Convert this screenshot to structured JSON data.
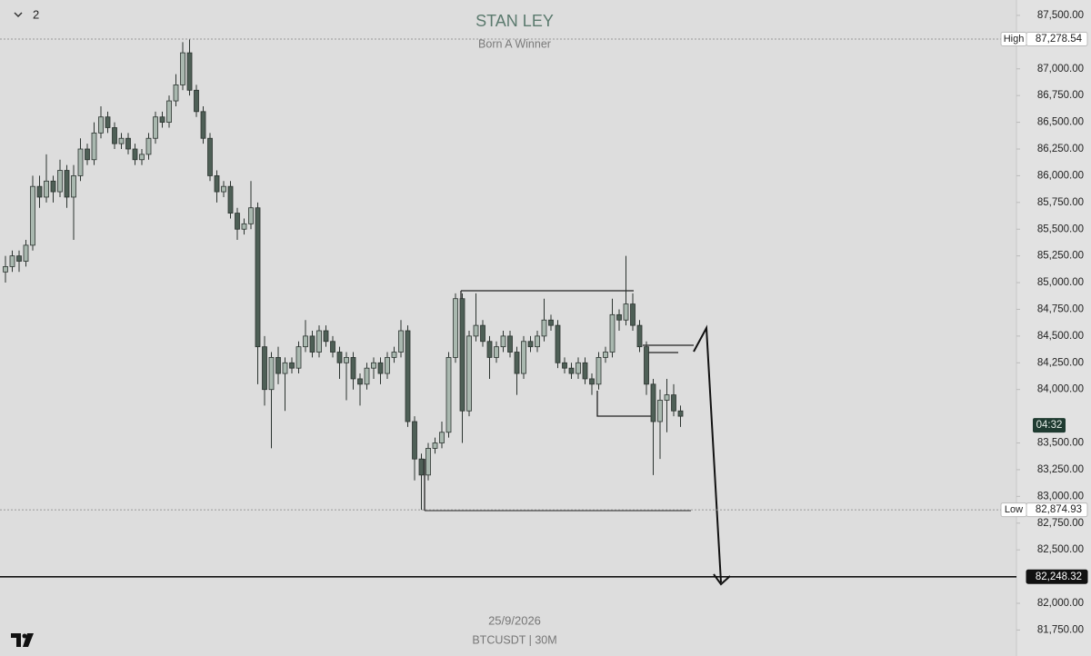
{
  "chart_data": {
    "type": "candlestick",
    "title": "STAN LEY",
    "subtitle": "Born A Winner",
    "pane_label": "2",
    "date": "25/9/2026",
    "symbol": "BTCUSDT | 30M",
    "countdown": "04:32",
    "up_color": "#a9b8af",
    "down_color": "#4e5f56",
    "wick_color": "#2b332f",
    "grid": false,
    "ylim": [
      81507,
      87644
    ],
    "yticks": [
      {
        "value": 81750,
        "label": "81,750.00"
      },
      {
        "value": 82000,
        "label": "82,000.00"
      },
      {
        "value": 82500,
        "label": "82,500.00"
      },
      {
        "value": 82750,
        "label": "82,750.00"
      },
      {
        "value": 83000,
        "label": "83,000.00"
      },
      {
        "value": 83250,
        "label": "83,250.00"
      },
      {
        "value": 83500,
        "label": "83,500.00"
      },
      {
        "value": 84000,
        "label": "84,000.00"
      },
      {
        "value": 84250,
        "label": "84,250.00"
      },
      {
        "value": 84500,
        "label": "84,500.00"
      },
      {
        "value": 84750,
        "label": "84,750.00"
      },
      {
        "value": 85000,
        "label": "85,000.00"
      },
      {
        "value": 85250,
        "label": "85,250.00"
      },
      {
        "value": 85500,
        "label": "85,500.00"
      },
      {
        "value": 85750,
        "label": "85,750.00"
      },
      {
        "value": 86000,
        "label": "86,000.00"
      },
      {
        "value": 86250,
        "label": "86,250.00"
      },
      {
        "value": 86500,
        "label": "86,500.00"
      },
      {
        "value": 86750,
        "label": "86,750.00"
      },
      {
        "value": 87000,
        "label": "87,000.00"
      },
      {
        "value": 87500,
        "label": "87,500.00"
      }
    ],
    "levels": [
      {
        "value": 87278.54,
        "label": "87,278.54",
        "tag": "High",
        "style": "dotted"
      },
      {
        "value": 82874.93,
        "label": "82,874.93",
        "tag": "Low",
        "style": "dotted"
      },
      {
        "value": 82248.32,
        "label": "82,248.32",
        "style": "solid"
      }
    ],
    "ohlc": [
      [
        85100,
        85250,
        85000,
        85150
      ],
      [
        85150,
        85300,
        85100,
        85250
      ],
      [
        85250,
        85300,
        85100,
        85200
      ],
      [
        85200,
        85400,
        85150,
        85350
      ],
      [
        85350,
        86000,
        85300,
        85900
      ],
      [
        85900,
        86000,
        85700,
        85800
      ],
      [
        85800,
        86200,
        85750,
        85950
      ],
      [
        85950,
        86000,
        85750,
        85850
      ],
      [
        85850,
        86150,
        85800,
        86050
      ],
      [
        86050,
        86100,
        85700,
        85800
      ],
      [
        85800,
        86100,
        85400,
        86000
      ],
      [
        86000,
        86350,
        85950,
        86250
      ],
      [
        86250,
        86300,
        86100,
        86150
      ],
      [
        86150,
        86500,
        86100,
        86400
      ],
      [
        86400,
        86650,
        86350,
        86550
      ],
      [
        86550,
        86600,
        86400,
        86450
      ],
      [
        86450,
        86500,
        86250,
        86300
      ],
      [
        86300,
        86400,
        86250,
        86350
      ],
      [
        86350,
        86400,
        86200,
        86250
      ],
      [
        86250,
        86300,
        86100,
        86150
      ],
      [
        86150,
        86250,
        86100,
        86200
      ],
      [
        86200,
        86400,
        86150,
        86350
      ],
      [
        86350,
        86600,
        86300,
        86550
      ],
      [
        86550,
        86600,
        86450,
        86500
      ],
      [
        86500,
        86750,
        86450,
        86700
      ],
      [
        86700,
        86950,
        86650,
        86850
      ],
      [
        86850,
        87250,
        86800,
        87150
      ],
      [
        87150,
        87278.54,
        86750,
        86800
      ],
      [
        86800,
        86850,
        86550,
        86600
      ],
      [
        86600,
        86650,
        86300,
        86350
      ],
      [
        86350,
        86400,
        85950,
        86000
      ],
      [
        86000,
        86050,
        85750,
        85850
      ],
      [
        85850,
        85950,
        85800,
        85900
      ],
      [
        85900,
        85950,
        85600,
        85650
      ],
      [
        85650,
        85700,
        85400,
        85500
      ],
      [
        85500,
        85600,
        85450,
        85550
      ],
      [
        85550,
        85950,
        85500,
        85700
      ],
      [
        85700,
        85750,
        84050,
        84400
      ],
      [
        84400,
        84500,
        83850,
        84000
      ],
      [
        84000,
        84350,
        83450,
        84300
      ],
      [
        84300,
        84400,
        84050,
        84150
      ],
      [
        84150,
        84300,
        83800,
        84250
      ],
      [
        84250,
        84300,
        84150,
        84200
      ],
      [
        84200,
        84450,
        84150,
        84400
      ],
      [
        84400,
        84650,
        84350,
        84500
      ],
      [
        84500,
        84550,
        84300,
        84350
      ],
      [
        84350,
        84600,
        84300,
        84550
      ],
      [
        84550,
        84600,
        84400,
        84450
      ],
      [
        84450,
        84500,
        84300,
        84350
      ],
      [
        84350,
        84400,
        84100,
        84250
      ],
      [
        84250,
        84350,
        83900,
        84300
      ],
      [
        84300,
        84350,
        84000,
        84100
      ],
      [
        84100,
        84150,
        83850,
        84050
      ],
      [
        84050,
        84250,
        84000,
        84200
      ],
      [
        84200,
        84300,
        84100,
        84250
      ],
      [
        84250,
        84300,
        84050,
        84150
      ],
      [
        84150,
        84350,
        84100,
        84300
      ],
      [
        84300,
        84400,
        84250,
        84350
      ],
      [
        84350,
        84650,
        84300,
        84550
      ],
      [
        84550,
        84600,
        83650,
        83700
      ],
      [
        83700,
        83750,
        83150,
        83350
      ],
      [
        83350,
        83400,
        82874.93,
        83200
      ],
      [
        83200,
        83500,
        83150,
        83450
      ],
      [
        83450,
        83550,
        83400,
        83500
      ],
      [
        83500,
        83700,
        83450,
        83600
      ],
      [
        83600,
        84350,
        83550,
        84300
      ],
      [
        84300,
        84900,
        84250,
        84850
      ],
      [
        84850,
        84900,
        83500,
        83800
      ],
      [
        83800,
        84550,
        83750,
        84500
      ],
      [
        84500,
        84900,
        84450,
        84600
      ],
      [
        84600,
        84650,
        84400,
        84450
      ],
      [
        84450,
        84500,
        84100,
        84300
      ],
      [
        84300,
        84450,
        84250,
        84400
      ],
      [
        84400,
        84550,
        84350,
        84500
      ],
      [
        84500,
        84550,
        84300,
        84350
      ],
      [
        84350,
        84400,
        83950,
        84150
      ],
      [
        84150,
        84500,
        84100,
        84450
      ],
      [
        84450,
        84500,
        84350,
        84400
      ],
      [
        84400,
        84550,
        84350,
        84500
      ],
      [
        84500,
        84850,
        84450,
        84650
      ],
      [
        84650,
        84700,
        84550,
        84600
      ],
      [
        84600,
        84650,
        84200,
        84250
      ],
      [
        84250,
        84300,
        84150,
        84200
      ],
      [
        84200,
        84250,
        84100,
        84150
      ],
      [
        84150,
        84300,
        84100,
        84250
      ],
      [
        84250,
        84300,
        84050,
        84100
      ],
      [
        84100,
        84150,
        83950,
        84050
      ],
      [
        84050,
        84350,
        84000,
        84300
      ],
      [
        84300,
        84400,
        84250,
        84350
      ],
      [
        84350,
        84850,
        84300,
        84700
      ],
      [
        84700,
        84750,
        84550,
        84650
      ],
      [
        84650,
        85250,
        84600,
        84800
      ],
      [
        84800,
        84900,
        84550,
        84600
      ],
      [
        84600,
        84650,
        84350,
        84400
      ],
      [
        84400,
        84450,
        83950,
        84050
      ],
      [
        84050,
        84100,
        83200,
        83700
      ],
      [
        83700,
        84000,
        83350,
        83900
      ],
      [
        83900,
        84100,
        83600,
        83950
      ],
      [
        83950,
        84050,
        83750,
        83800
      ],
      [
        83800,
        83850,
        83650,
        83750
      ]
    ]
  }
}
